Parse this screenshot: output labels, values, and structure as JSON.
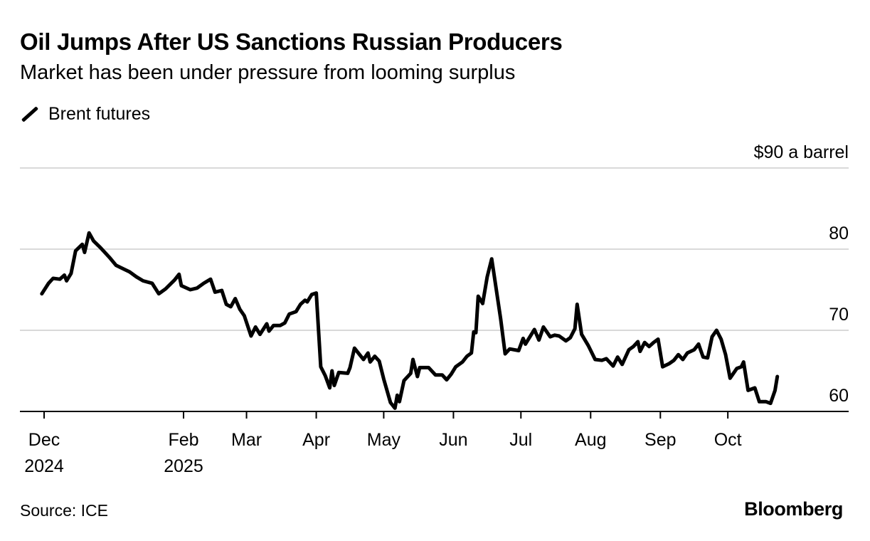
{
  "title": "Oil Jumps After US Sanctions Russian Producers",
  "subtitle": "Market has been under pressure from looming surplus",
  "legend": {
    "series_label": "Brent futures",
    "icon": "line-swatch-icon"
  },
  "source": "Source: ICE",
  "brand": "Bloomberg",
  "colors": {
    "line": "#000000",
    "grid": "#d9d9d9",
    "axis": "#000000"
  },
  "chart_data": {
    "type": "line",
    "title": "Oil Jumps After US Sanctions Russian Producers",
    "subtitle": "Market has been under pressure from looming surplus",
    "xlabel": "",
    "ylabel": "",
    "y_unit_label": "$90 a barrel",
    "ylim": [
      60,
      90
    ],
    "yticks": [
      60,
      70,
      80,
      90
    ],
    "ytick_labels": [
      "60",
      "70",
      "80",
      "$90 a barrel"
    ],
    "grid": true,
    "legend_position": "top-left",
    "x_domain": [
      "2024-12-01",
      "2025-10-31"
    ],
    "xticks": [
      {
        "date": "2024-12-01",
        "label": "Dec",
        "sublabel": "2024"
      },
      {
        "date": "2025-02-01",
        "label": "Feb",
        "sublabel": "2025"
      },
      {
        "date": "2025-03-01",
        "label": "Mar",
        "sublabel": ""
      },
      {
        "date": "2025-04-01",
        "label": "Apr",
        "sublabel": ""
      },
      {
        "date": "2025-05-01",
        "label": "May",
        "sublabel": ""
      },
      {
        "date": "2025-06-01",
        "label": "Jun",
        "sublabel": ""
      },
      {
        "date": "2025-07-01",
        "label": "Jul",
        "sublabel": ""
      },
      {
        "date": "2025-08-01",
        "label": "Aug",
        "sublabel": ""
      },
      {
        "date": "2025-09-01",
        "label": "Sep",
        "sublabel": ""
      },
      {
        "date": "2025-10-01",
        "label": "Oct",
        "sublabel": ""
      }
    ],
    "series": [
      {
        "name": "Brent futures",
        "points": [
          [
            "2024-11-30",
            74.5
          ],
          [
            "2024-12-03",
            75.8
          ],
          [
            "2024-12-05",
            76.4
          ],
          [
            "2024-12-08",
            76.3
          ],
          [
            "2024-12-10",
            76.8
          ],
          [
            "2024-12-11",
            76.1
          ],
          [
            "2024-12-13",
            77.0
          ],
          [
            "2024-12-15",
            79.8
          ],
          [
            "2024-12-18",
            80.6
          ],
          [
            "2024-12-19",
            79.6
          ],
          [
            "2024-12-21",
            82.0
          ],
          [
            "2024-12-23",
            81.0
          ],
          [
            "2024-12-26",
            80.2
          ],
          [
            "2024-12-30",
            79.0
          ],
          [
            "2025-01-02",
            78.0
          ],
          [
            "2025-01-05",
            77.6
          ],
          [
            "2025-01-08",
            77.2
          ],
          [
            "2025-01-11",
            76.6
          ],
          [
            "2025-01-14",
            76.1
          ],
          [
            "2025-01-18",
            75.8
          ],
          [
            "2025-01-21",
            74.5
          ],
          [
            "2025-01-24",
            75.1
          ],
          [
            "2025-01-28",
            76.2
          ],
          [
            "2025-01-30",
            76.9
          ],
          [
            "2025-01-31",
            75.5
          ],
          [
            "2025-02-04",
            75.0
          ],
          [
            "2025-02-07",
            75.2
          ],
          [
            "2025-02-10",
            75.8
          ],
          [
            "2025-02-13",
            76.3
          ],
          [
            "2025-02-15",
            74.7
          ],
          [
            "2025-02-18",
            74.9
          ],
          [
            "2025-02-20",
            73.2
          ],
          [
            "2025-02-22",
            72.9
          ],
          [
            "2025-02-24",
            73.9
          ],
          [
            "2025-02-26",
            72.6
          ],
          [
            "2025-02-28",
            71.8
          ],
          [
            "2025-03-03",
            69.3
          ],
          [
            "2025-03-05",
            70.4
          ],
          [
            "2025-03-07",
            69.5
          ],
          [
            "2025-03-10",
            70.8
          ],
          [
            "2025-03-11",
            69.9
          ],
          [
            "2025-03-13",
            70.6
          ],
          [
            "2025-03-16",
            70.6
          ],
          [
            "2025-03-18",
            70.9
          ],
          [
            "2025-03-20",
            72.0
          ],
          [
            "2025-03-23",
            72.3
          ],
          [
            "2025-03-25",
            73.2
          ],
          [
            "2025-03-27",
            73.7
          ],
          [
            "2025-03-28",
            73.5
          ],
          [
            "2025-03-30",
            74.4
          ],
          [
            "2025-04-01",
            74.6
          ],
          [
            "2025-04-03",
            65.5
          ],
          [
            "2025-04-05",
            64.4
          ],
          [
            "2025-04-07",
            62.9
          ],
          [
            "2025-04-08",
            65.0
          ],
          [
            "2025-04-09",
            63.2
          ],
          [
            "2025-04-11",
            64.8
          ],
          [
            "2025-04-15",
            64.7
          ],
          [
            "2025-04-16",
            65.4
          ],
          [
            "2025-04-18",
            67.8
          ],
          [
            "2025-04-20",
            67.1
          ],
          [
            "2025-04-22",
            66.4
          ],
          [
            "2025-04-24",
            67.2
          ],
          [
            "2025-04-25",
            66.1
          ],
          [
            "2025-04-27",
            66.8
          ],
          [
            "2025-04-29",
            66.2
          ],
          [
            "2025-05-01",
            64.0
          ],
          [
            "2025-05-04",
            61.1
          ],
          [
            "2025-05-06",
            60.4
          ],
          [
            "2025-05-07",
            62.0
          ],
          [
            "2025-05-08",
            61.2
          ],
          [
            "2025-05-10",
            63.8
          ],
          [
            "2025-05-13",
            64.7
          ],
          [
            "2025-05-14",
            66.4
          ],
          [
            "2025-05-16",
            64.3
          ],
          [
            "2025-05-17",
            65.4
          ],
          [
            "2025-05-21",
            65.4
          ],
          [
            "2025-05-24",
            64.5
          ],
          [
            "2025-05-27",
            64.5
          ],
          [
            "2025-05-29",
            63.9
          ],
          [
            "2025-05-31",
            64.6
          ],
          [
            "2025-06-02",
            65.5
          ],
          [
            "2025-06-05",
            66.1
          ],
          [
            "2025-06-07",
            66.8
          ],
          [
            "2025-06-09",
            67.2
          ],
          [
            "2025-06-10",
            69.8
          ],
          [
            "2025-06-11",
            69.7
          ],
          [
            "2025-06-12",
            74.2
          ],
          [
            "2025-06-14",
            73.3
          ],
          [
            "2025-06-16",
            76.6
          ],
          [
            "2025-06-18",
            78.8
          ],
          [
            "2025-06-19",
            77.0
          ],
          [
            "2025-06-22",
            71.4
          ],
          [
            "2025-06-24",
            67.1
          ],
          [
            "2025-06-26",
            67.7
          ],
          [
            "2025-06-30",
            67.5
          ],
          [
            "2025-07-02",
            69.0
          ],
          [
            "2025-07-03",
            68.3
          ],
          [
            "2025-07-07",
            70.1
          ],
          [
            "2025-07-09",
            68.8
          ],
          [
            "2025-07-11",
            70.4
          ],
          [
            "2025-07-14",
            69.2
          ],
          [
            "2025-07-16",
            69.4
          ],
          [
            "2025-07-18",
            69.3
          ],
          [
            "2025-07-21",
            68.7
          ],
          [
            "2025-07-23",
            69.1
          ],
          [
            "2025-07-25",
            70.2
          ],
          [
            "2025-07-26",
            73.2
          ],
          [
            "2025-07-28",
            69.5
          ],
          [
            "2025-07-31",
            68.1
          ],
          [
            "2025-08-03",
            66.4
          ],
          [
            "2025-08-06",
            66.3
          ],
          [
            "2025-08-08",
            66.5
          ],
          [
            "2025-08-11",
            65.6
          ],
          [
            "2025-08-13",
            66.7
          ],
          [
            "2025-08-15",
            65.8
          ],
          [
            "2025-08-18",
            67.6
          ],
          [
            "2025-08-20",
            68.0
          ],
          [
            "2025-08-22",
            68.6
          ],
          [
            "2025-08-23",
            67.4
          ],
          [
            "2025-08-25",
            68.5
          ],
          [
            "2025-08-27",
            68.0
          ],
          [
            "2025-08-29",
            68.5
          ],
          [
            "2025-08-31",
            68.9
          ],
          [
            "2025-09-02",
            65.5
          ],
          [
            "2025-09-05",
            65.9
          ],
          [
            "2025-09-07",
            66.3
          ],
          [
            "2025-09-09",
            67.0
          ],
          [
            "2025-09-11",
            66.4
          ],
          [
            "2025-09-13",
            67.2
          ],
          [
            "2025-09-16",
            67.6
          ],
          [
            "2025-09-18",
            68.3
          ],
          [
            "2025-09-20",
            66.7
          ],
          [
            "2025-09-22",
            66.6
          ],
          [
            "2025-09-24",
            69.2
          ],
          [
            "2025-09-26",
            70.0
          ],
          [
            "2025-09-28",
            68.9
          ],
          [
            "2025-09-30",
            67.0
          ],
          [
            "2025-10-02",
            64.1
          ],
          [
            "2025-10-05",
            65.3
          ],
          [
            "2025-10-07",
            65.5
          ],
          [
            "2025-10-08",
            66.1
          ],
          [
            "2025-10-10",
            62.6
          ],
          [
            "2025-10-13",
            62.9
          ],
          [
            "2025-10-15",
            61.2
          ],
          [
            "2025-10-18",
            61.2
          ],
          [
            "2025-10-20",
            61.0
          ],
          [
            "2025-10-22",
            62.6
          ],
          [
            "2025-10-23",
            64.3
          ]
        ]
      }
    ]
  }
}
